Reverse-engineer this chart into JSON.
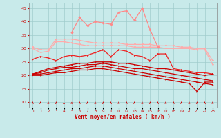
{
  "x": [
    0,
    1,
    2,
    3,
    4,
    5,
    6,
    7,
    8,
    9,
    10,
    11,
    12,
    13,
    14,
    15,
    16,
    17,
    18,
    19,
    20,
    21,
    22,
    23
  ],
  "line_light_upper": [
    30.5,
    29.5,
    29.5,
    33.5,
    33.5,
    33.5,
    33.0,
    32.5,
    32.0,
    32.0,
    32.0,
    32.0,
    31.5,
    31.5,
    31.5,
    31.5,
    31.0,
    31.0,
    31.0,
    30.5,
    30.5,
    30.0,
    30.0,
    25.5
  ],
  "line_light_lower": [
    30.0,
    28.5,
    29.0,
    32.5,
    32.5,
    32.0,
    31.5,
    31.0,
    31.0,
    31.0,
    31.0,
    31.0,
    31.0,
    30.5,
    30.5,
    30.5,
    30.5,
    30.0,
    30.0,
    30.0,
    30.0,
    29.5,
    29.5,
    24.0
  ],
  "line_pink_peak": [
    null,
    null,
    null,
    null,
    null,
    36.0,
    41.5,
    38.5,
    40.0,
    39.5,
    39.0,
    43.5,
    44.0,
    40.5,
    45.0,
    37.0,
    30.5,
    null,
    null,
    null,
    null,
    null,
    null,
    null
  ],
  "line_medium_red": [
    26.0,
    27.0,
    26.5,
    25.5,
    27.0,
    27.5,
    27.0,
    27.5,
    28.5,
    29.5,
    27.0,
    29.5,
    29.0,
    27.5,
    27.0,
    25.5,
    28.0,
    28.0,
    22.5,
    22.0,
    21.5,
    21.0,
    21.0,
    20.5
  ],
  "line_dark1": [
    20.5,
    21.5,
    22.5,
    23.0,
    23.5,
    24.0,
    24.5,
    24.5,
    25.0,
    25.0,
    25.0,
    24.5,
    24.5,
    24.0,
    23.5,
    23.0,
    22.5,
    22.5,
    22.0,
    21.5,
    21.0,
    20.5,
    20.0,
    20.5
  ],
  "line_dark2": [
    20.5,
    21.0,
    22.0,
    22.5,
    23.0,
    23.0,
    23.5,
    24.0,
    24.0,
    24.5,
    24.0,
    23.5,
    23.0,
    22.5,
    22.5,
    22.0,
    21.5,
    21.0,
    20.5,
    20.0,
    19.5,
    19.0,
    18.5,
    18.0
  ],
  "line_dark3": [
    20.5,
    20.5,
    21.0,
    21.5,
    22.0,
    22.5,
    22.5,
    23.0,
    23.5,
    23.5,
    23.0,
    22.5,
    22.0,
    21.5,
    21.0,
    20.5,
    20.0,
    19.5,
    19.0,
    18.5,
    18.0,
    17.5,
    17.0,
    16.5
  ],
  "line_dark4": [
    20.0,
    20.0,
    20.5,
    21.0,
    21.0,
    21.5,
    22.0,
    22.0,
    22.5,
    22.5,
    22.0,
    21.5,
    21.0,
    20.5,
    20.0,
    19.5,
    19.0,
    18.5,
    18.0,
    17.5,
    17.0,
    14.0,
    17.5,
    17.5
  ],
  "ylim": [
    8,
    47
  ],
  "yticks": [
    10,
    15,
    20,
    25,
    30,
    35,
    40,
    45
  ],
  "xlim": [
    -0.5,
    23.5
  ],
  "xlabel": "Vent moyen/en rafales ( km/h )",
  "bg_color": "#c8eaea",
  "grid_color": "#a0cccc",
  "color_dark_red": "#cc0000",
  "color_medium_red": "#ee2222",
  "color_light_pink": "#ffaaaa",
  "color_bright_pink": "#ff8888"
}
